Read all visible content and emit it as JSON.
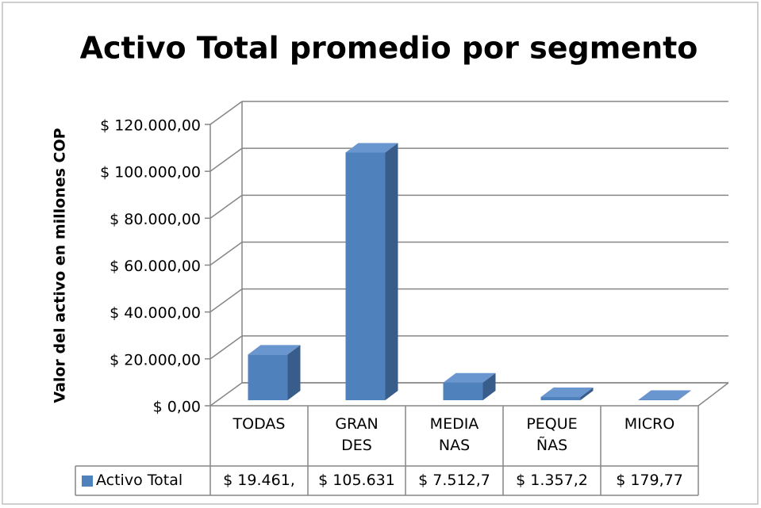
{
  "chart_data": {
    "type": "bar3d",
    "title": "Activo Total promedio por segmento",
    "y_label": "Valor del activo en millones COP",
    "categories": [
      "TODAS",
      "GRAN\nDES",
      "MEDIA\nNAS",
      "PEQUE\nÑAS",
      "MICRO"
    ],
    "series": [
      {
        "name": "Activo Total",
        "color": "#4f81bd",
        "values": [
          19461,
          105631,
          7512.7,
          1357.2,
          179.77
        ],
        "value_labels": [
          "$ 19.461,",
          "$ 105.631",
          "$ 7.512,7",
          "$ 1.357,2",
          "$ 179,77"
        ]
      }
    ],
    "ylim": [
      0,
      120000
    ],
    "yticks": [
      {
        "value": 0,
        "label": "$ 0,00"
      },
      {
        "value": 20000,
        "label": "$ 20.000,00"
      },
      {
        "value": 40000,
        "label": "$ 40.000,00"
      },
      {
        "value": 60000,
        "label": "$ 60.000,00"
      },
      {
        "value": 80000,
        "label": "$ 80.000,00"
      },
      {
        "value": 100000,
        "label": "$ 100.000,00"
      },
      {
        "value": 120000,
        "label": "$ 120.000,00"
      }
    ],
    "grid": true
  }
}
